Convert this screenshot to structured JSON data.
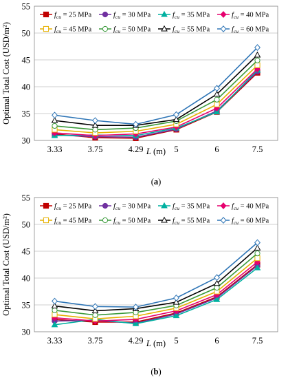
{
  "chart_data": [
    {
      "type": "line",
      "panel_label": "(a)",
      "xlabel": "L (m)",
      "ylabel": "Optimal Total Cost (USD/m²)",
      "categories": [
        "3.33",
        "3.75",
        "4.29",
        "5",
        "6",
        "7.5"
      ],
      "ylim": [
        30,
        55
      ],
      "yticks": [
        30,
        35,
        40,
        45,
        50,
        55
      ],
      "grid": true,
      "legend_position": "top",
      "series": [
        {
          "name": "fcu = 25 MPa",
          "color": "#c00000",
          "marker": "square-filled",
          "values": [
            31.2,
            30.5,
            30.4,
            32.0,
            35.3,
            42.6
          ]
        },
        {
          "name": "fcu = 30 MPa",
          "color": "#7030a0",
          "marker": "circle-filled",
          "values": [
            31.0,
            30.7,
            30.6,
            32.1,
            35.5,
            42.8
          ]
        },
        {
          "name": "fcu = 35 MPa",
          "color": "#00b0a0",
          "marker": "triangle-filled",
          "values": [
            30.9,
            31.0,
            30.9,
            32.3,
            35.3,
            43.1
          ]
        },
        {
          "name": "fcu = 40 MPa",
          "color": "#e6006e",
          "marker": "diamond-filled",
          "values": [
            31.4,
            30.9,
            31.2,
            32.5,
            36.0,
            43.3
          ]
        },
        {
          "name": "fcu = 45 MPa",
          "color": "#e6b000",
          "marker": "square-open",
          "values": [
            32.0,
            31.4,
            31.7,
            33.0,
            36.7,
            44.0
          ]
        },
        {
          "name": "fcu = 50 MPa",
          "color": "#3a9a3a",
          "marker": "circle-open",
          "values": [
            32.7,
            32.0,
            32.3,
            33.6,
            37.6,
            44.9
          ]
        },
        {
          "name": "fcu = 55 MPa",
          "color": "#000000",
          "marker": "triangle-open",
          "values": [
            33.7,
            32.8,
            32.8,
            33.9,
            38.6,
            45.9
          ]
        },
        {
          "name": "fcu = 60 MPa",
          "color": "#2e75b6",
          "marker": "diamond-open",
          "values": [
            34.7,
            33.7,
            33.0,
            34.8,
            39.7,
            47.3
          ]
        }
      ]
    },
    {
      "type": "line",
      "panel_label": "(b)",
      "xlabel": "L (m)",
      "ylabel": "Optimal Total Cost (USD/m²)",
      "categories": [
        "3.33",
        "3.75",
        "4.29",
        "5",
        "6",
        "7.5"
      ],
      "ylim": [
        30,
        55
      ],
      "yticks": [
        30,
        35,
        40,
        45,
        50,
        55
      ],
      "grid": true,
      "legend_position": "top",
      "series": [
        {
          "name": "fcu = 25 MPa",
          "color": "#c00000",
          "marker": "square-filled",
          "values": [
            32.3,
            31.8,
            31.8,
            33.5,
            36.5,
            42.5
          ]
        },
        {
          "name": "fcu = 30 MPa",
          "color": "#7030a0",
          "marker": "circle-filled",
          "values": [
            32.0,
            32.1,
            31.6,
            33.3,
            36.3,
            42.3
          ]
        },
        {
          "name": "fcu = 35 MPa",
          "color": "#00b0a0",
          "marker": "triangle-filled",
          "values": [
            31.3,
            32.3,
            31.5,
            33.0,
            36.0,
            41.9
          ]
        },
        {
          "name": "fcu = 40 MPa",
          "color": "#e6006e",
          "marker": "diamond-filled",
          "values": [
            32.6,
            32.0,
            32.3,
            33.9,
            36.9,
            43.0
          ]
        },
        {
          "name": "fcu = 45 MPa",
          "color": "#e6b000",
          "marker": "square-open",
          "values": [
            33.2,
            32.4,
            32.9,
            34.4,
            37.5,
            43.7
          ]
        },
        {
          "name": "fcu = 50 MPa",
          "color": "#3a9a3a",
          "marker": "circle-open",
          "values": [
            34.0,
            33.1,
            33.6,
            34.9,
            38.2,
            44.6
          ]
        },
        {
          "name": "fcu = 55 MPa",
          "color": "#000000",
          "marker": "triangle-open",
          "values": [
            34.8,
            33.9,
            34.3,
            35.5,
            39.0,
            45.6
          ]
        },
        {
          "name": "fcu = 60 MPa",
          "color": "#2e75b6",
          "marker": "diamond-open",
          "values": [
            35.7,
            34.7,
            34.6,
            36.3,
            40.1,
            46.6
          ]
        }
      ]
    }
  ]
}
